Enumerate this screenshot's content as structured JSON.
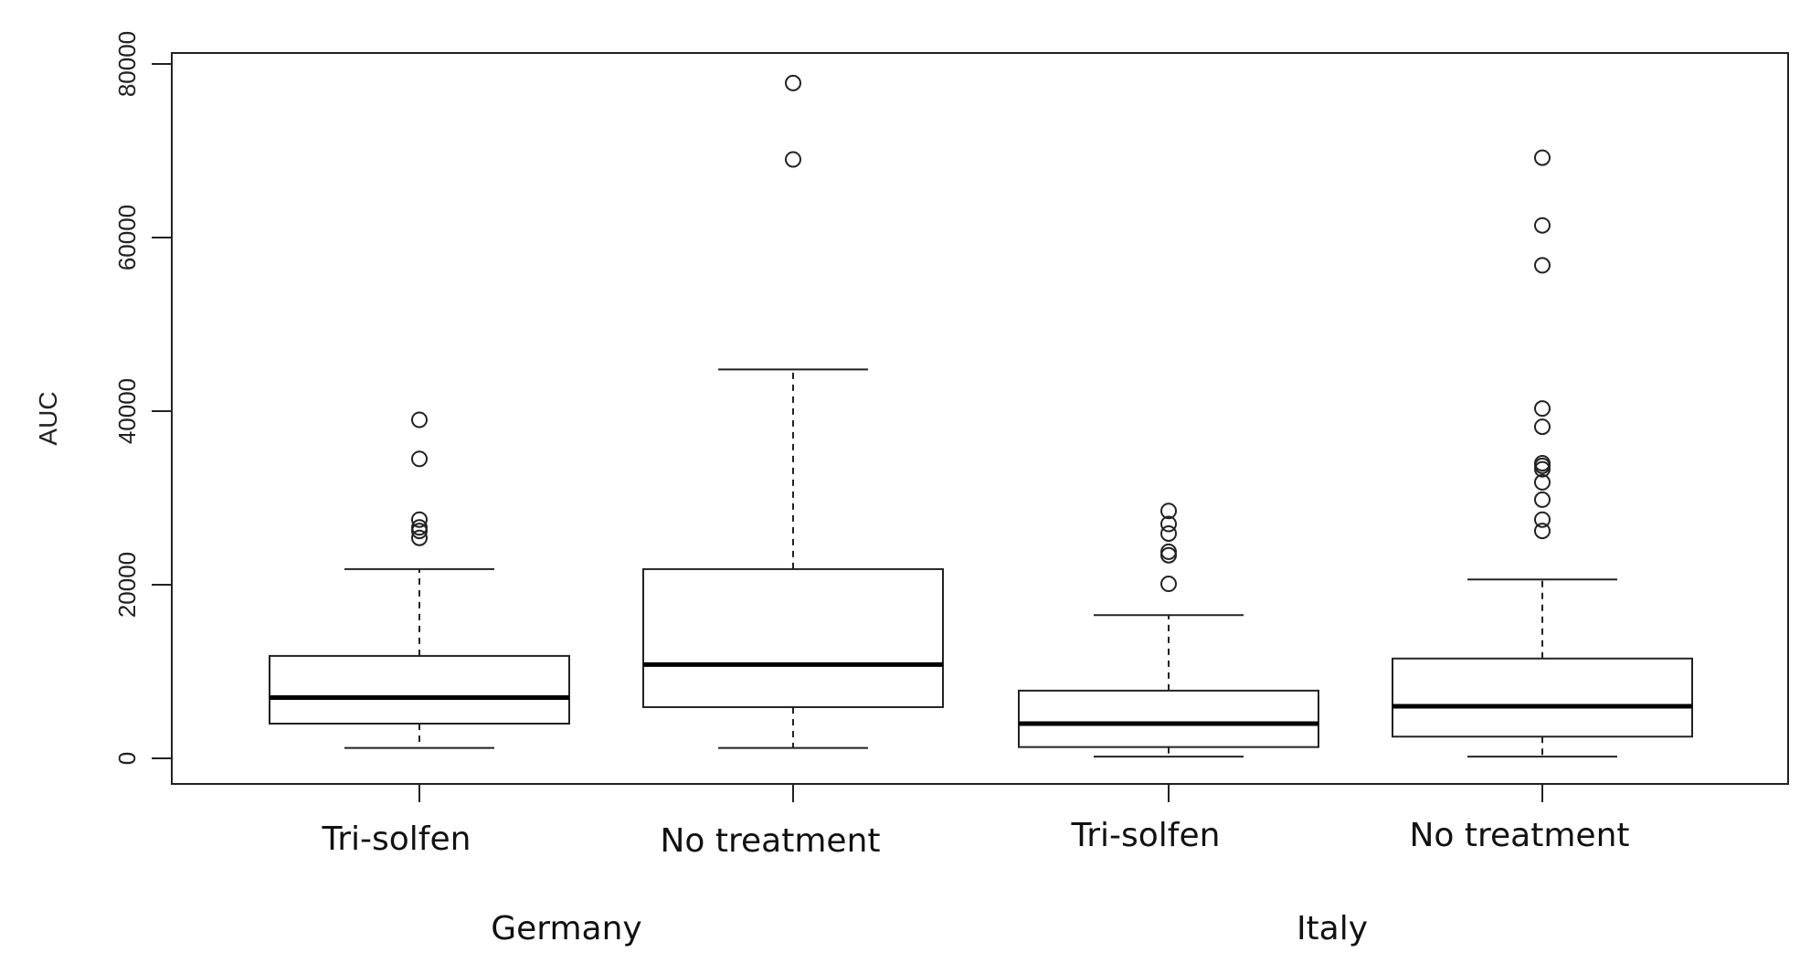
{
  "chart_data": {
    "type": "boxplot",
    "title": "",
    "xlabel": "",
    "ylabel": "AUC",
    "ylim": [
      -3000,
      81000
    ],
    "yticks": [
      0,
      20000,
      40000,
      60000,
      80000
    ],
    "grid": false,
    "categories": [
      "Tri-solfen",
      "No treatment",
      "Tri-solfen",
      "No treatment"
    ],
    "groups": [
      {
        "label": "Germany",
        "members": [
          0,
          1
        ]
      },
      {
        "label": "Italy",
        "members": [
          2,
          3
        ]
      }
    ],
    "boxes": [
      {
        "label": "Tri-solfen",
        "group": "Germany",
        "whisker_low": 1200,
        "q1": 4000,
        "median": 7000,
        "q3": 11800,
        "whisker_high": 21800,
        "outliers": [
          25400,
          26200,
          26600,
          27500,
          34500,
          39000
        ]
      },
      {
        "label": "No treatment",
        "group": "Germany",
        "whisker_low": 1200,
        "q1": 5900,
        "median": 10800,
        "q3": 21800,
        "whisker_high": 44800,
        "outliers": [
          69000,
          77800
        ]
      },
      {
        "label": "Tri-solfen",
        "group": "Italy",
        "whisker_low": 200,
        "q1": 1300,
        "median": 4000,
        "q3": 7800,
        "whisker_high": 16500,
        "outliers": [
          20100,
          23400,
          23800,
          25900,
          27000,
          28500
        ]
      },
      {
        "label": "No treatment",
        "group": "Italy",
        "whisker_low": 200,
        "q1": 2500,
        "median": 6000,
        "q3": 11500,
        "whisker_high": 20600,
        "outliers": [
          26200,
          27500,
          29800,
          31800,
          33300,
          33700,
          34000,
          38200,
          40300,
          56800,
          61400,
          69200
        ]
      }
    ]
  }
}
